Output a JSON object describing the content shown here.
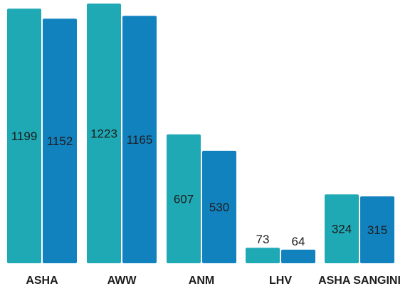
{
  "chart_data": {
    "type": "bar",
    "categories": [
      "ASHA",
      "AWW",
      "ANM",
      "LHV",
      "ASHA SANGINI"
    ],
    "series": [
      {
        "values": [
          1199,
          1223,
          607,
          73,
          324
        ]
      },
      {
        "values": [
          1152,
          1165,
          530,
          64,
          315
        ]
      }
    ],
    "colors": [
      "#1fa9b5",
      "#1282bf"
    ],
    "value_labels": [
      [
        "1199",
        "1223",
        "607",
        "73",
        "324"
      ],
      [
        "1152",
        "1165",
        "530",
        "64",
        "315"
      ]
    ],
    "ylim": [
      0,
      1223
    ],
    "legend": "none",
    "grid": false,
    "title": "",
    "xlabel": "",
    "ylabel": ""
  }
}
